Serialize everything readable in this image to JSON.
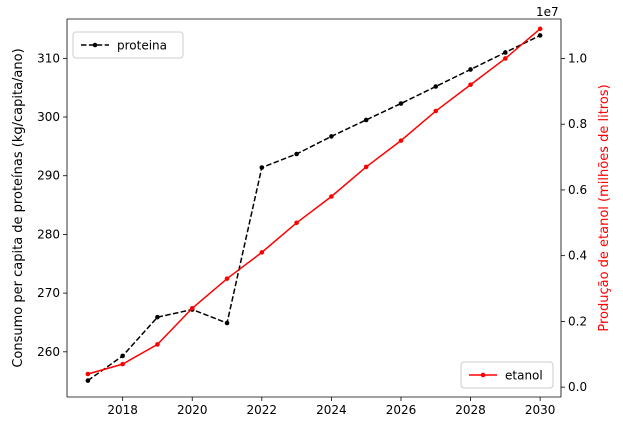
{
  "chart_data": {
    "type": "line",
    "x": [
      2017,
      2018,
      2019,
      2020,
      2021,
      2022,
      2023,
      2024,
      2025,
      2026,
      2027,
      2028,
      2029,
      2030
    ],
    "xlim": [
      2016.4,
      2030.6
    ],
    "x_ticks": [
      "2018",
      "2020",
      "2022",
      "2024",
      "2026",
      "2028",
      "2030"
    ],
    "left_axis": {
      "ylabel": "Consumo per capita de proteínas (kg/capita/ano)",
      "ylim": [
        252.3,
        316.7
      ],
      "ticks": [
        "260",
        "270",
        "280",
        "290",
        "300",
        "310"
      ]
    },
    "right_axis": {
      "ylabel": "Produção de etanol (milhões de litros)",
      "offset_label": "1e7",
      "ylim": [
        -0.03,
        1.12
      ],
      "ticks": [
        "0.0",
        "0.2",
        "0.4",
        "0.6",
        "0.8",
        "1.0"
      ],
      "color": "#ff0000"
    },
    "series": [
      {
        "name": "proteina",
        "axis": "left",
        "color": "#000000",
        "linestyle": "dashed",
        "values": [
          255.1,
          259.3,
          265.9,
          267.2,
          264.9,
          291.4,
          293.7,
          296.7,
          299.5,
          302.3,
          305.2,
          308.1,
          311.0,
          313.9
        ]
      },
      {
        "name": "etanol",
        "axis": "right",
        "color": "#ff0000",
        "linestyle": "solid",
        "values": [
          0.04,
          0.07,
          0.13,
          0.24,
          0.33,
          0.41,
          0.5,
          0.58,
          0.67,
          0.75,
          0.84,
          0.92,
          1.0,
          1.09
        ]
      }
    ],
    "legends": [
      {
        "series": "proteina",
        "placement": "upper-left"
      },
      {
        "series": "etanol",
        "placement": "lower-right"
      }
    ]
  }
}
